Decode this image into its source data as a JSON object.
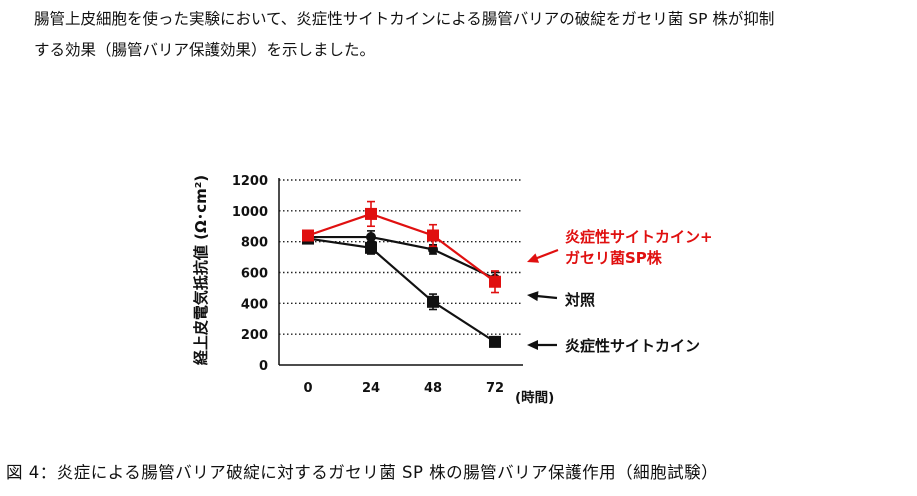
{
  "intro_text": {
    "line1": "腸管上皮細胞を使った実験において、炎症性サイトカインによる腸管バリアの破綻をガセリ菌 SP 株が抑制",
    "line2": "する効果（腸管バリア保護効果）を示しました。"
  },
  "caption": "図 4：炎症による腸管バリア破綻に対するガセリ菌 SP 株の腸管バリア保護作用（細胞試験）",
  "chart_data": {
    "type": "line",
    "x": [
      0,
      24,
      48,
      72
    ],
    "x_tick_labels": [
      "0",
      "24",
      "48",
      "72"
    ],
    "xlabel": "(時間)",
    "ylabel": "経上皮電気抵抗値 (Ω･cm²)",
    "ylim": [
      0,
      1200
    ],
    "y_ticks": [
      0,
      200,
      400,
      600,
      800,
      1000,
      1200
    ],
    "y_tick_labels": [
      "0",
      "200",
      "400",
      "600",
      "800",
      "1000",
      "1200"
    ],
    "grid": "horizontal dotted",
    "legend": "direct labels on right with arrows",
    "series": [
      {
        "name": "炎症性サイトカイン+\nガセリ菌SP株",
        "label_lines": [
          "炎症性サイトカイン+",
          "ガセリ菌SP株"
        ],
        "color": "#e01010",
        "marker": "square",
        "values": [
          840,
          980,
          840,
          540
        ],
        "errors": [
          30,
          80,
          70,
          70
        ]
      },
      {
        "name": "対照",
        "label_lines": [
          "対照"
        ],
        "color": "#111111",
        "marker": "circle",
        "values": [
          830,
          830,
          750,
          560
        ],
        "errors": [
          20,
          40,
          30,
          40
        ]
      },
      {
        "name": "炎症性サイトカイン",
        "label_lines": [
          "炎症性サイトカイン"
        ],
        "color": "#111111",
        "marker": "square",
        "values": [
          820,
          760,
          410,
          150
        ],
        "errors": [
          20,
          40,
          50,
          10
        ]
      }
    ]
  }
}
